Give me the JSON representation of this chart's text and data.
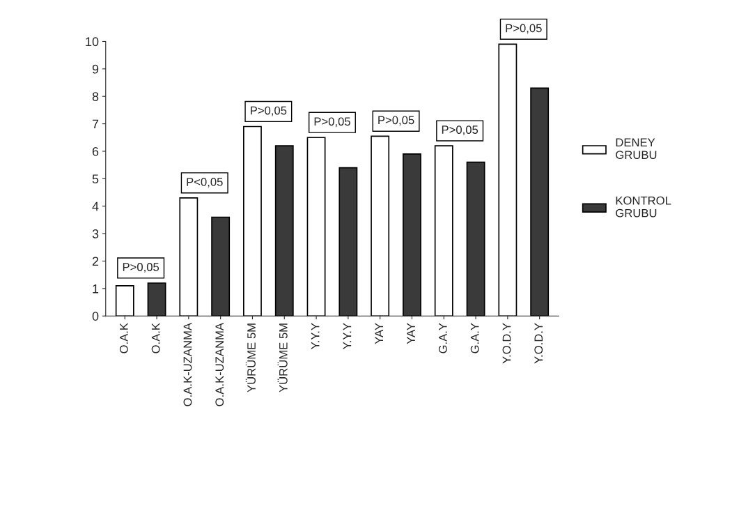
{
  "chart_data": {
    "type": "bar",
    "categories": [
      "O.A.K",
      "O.A.K",
      "O.A.K-UZANMA",
      "O.A.K-UZANMA",
      "YÜRÜME 5M",
      "YÜRÜME 5M",
      "Y.Y.Y",
      "Y.Y.Y",
      "YAY",
      "YAY",
      "G.A.Y",
      "G.A.Y",
      "Y.O.D.Y",
      "Y.O.D.Y"
    ],
    "series": [
      {
        "name": "DENEY\nGRUBU",
        "color": "#ffffff",
        "values": [
          1.1,
          null,
          4.3,
          null,
          6.9,
          null,
          6.5,
          null,
          6.55,
          null,
          6.2,
          null,
          9.9,
          null
        ]
      },
      {
        "name": "KONTROL\nGRUBU",
        "color": "#3a3a3a",
        "values": [
          null,
          1.2,
          null,
          3.6,
          null,
          6.2,
          null,
          5.4,
          null,
          5.9,
          null,
          5.6,
          null,
          8.3
        ]
      }
    ],
    "ylim": [
      0,
      10
    ],
    "yticks": [
      0,
      1,
      2,
      3,
      4,
      5,
      6,
      7,
      8,
      9,
      10
    ],
    "annotations": [
      "P>0,05",
      "P<0,05",
      "P>0,05",
      "P>0,05",
      "P>0,05",
      "P>0,05",
      "P>0,05"
    ],
    "grid": false,
    "legend": "right"
  }
}
